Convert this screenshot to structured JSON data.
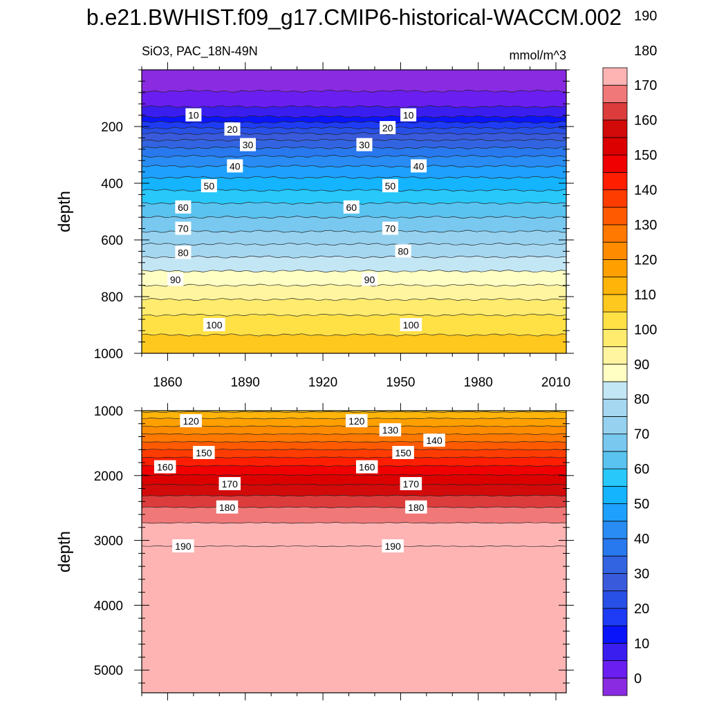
{
  "chart_data": {
    "title": "b.e21.BWHIST.f09_g17.CMIP6-historical-WACCM.002",
    "left_subtitle": "SiO3, PAC_18N-49N",
    "right_subtitle": "mmol/m^3",
    "type": "heatmap",
    "x_axis": {
      "ticks": [
        1860,
        1890,
        1920,
        1950,
        1980,
        2010
      ],
      "range": [
        1850,
        2014
      ]
    },
    "panels": [
      {
        "name": "upper",
        "ylabel": "depth",
        "ylim": [
          0,
          1000
        ],
        "yticks": [
          200,
          400,
          600,
          800,
          1000
        ],
        "contour_depths": [
          {
            "value": 0,
            "depth": 75
          },
          {
            "value": 5,
            "depth": 130
          },
          {
            "value": 10,
            "depth": 165
          },
          {
            "value": 15,
            "depth": 185
          },
          {
            "value": 20,
            "depth": 205
          },
          {
            "value": 25,
            "depth": 225
          },
          {
            "value": 30,
            "depth": 248
          },
          {
            "value": 35,
            "depth": 275
          },
          {
            "value": 40,
            "depth": 305
          },
          {
            "value": 45,
            "depth": 340
          },
          {
            "value": 50,
            "depth": 380
          },
          {
            "value": 55,
            "depth": 425
          },
          {
            "value": 60,
            "depth": 470
          },
          {
            "value": 65,
            "depth": 520
          },
          {
            "value": 70,
            "depth": 570
          },
          {
            "value": 75,
            "depth": 615
          },
          {
            "value": 80,
            "depth": 660
          },
          {
            "value": 85,
            "depth": 710
          },
          {
            "value": 90,
            "depth": 760
          },
          {
            "value": 95,
            "depth": 810
          },
          {
            "value": 100,
            "depth": 865
          },
          {
            "value": 105,
            "depth": 935
          }
        ],
        "labels": [
          {
            "text": "10",
            "year": 1870,
            "depth": 160
          },
          {
            "text": "10",
            "year": 1953,
            "depth": 160
          },
          {
            "text": "20",
            "year": 1885,
            "depth": 210
          },
          {
            "text": "20",
            "year": 1945,
            "depth": 205
          },
          {
            "text": "30",
            "year": 1891,
            "depth": 265
          },
          {
            "text": "30",
            "year": 1936,
            "depth": 265
          },
          {
            "text": "40",
            "year": 1886,
            "depth": 340
          },
          {
            "text": "40",
            "year": 1957,
            "depth": 340
          },
          {
            "text": "50",
            "year": 1876,
            "depth": 410
          },
          {
            "text": "50",
            "year": 1946,
            "depth": 410
          },
          {
            "text": "60",
            "year": 1866,
            "depth": 485
          },
          {
            "text": "60",
            "year": 1931,
            "depth": 485
          },
          {
            "text": "70",
            "year": 1866,
            "depth": 560
          },
          {
            "text": "70",
            "year": 1946,
            "depth": 560
          },
          {
            "text": "80",
            "year": 1866,
            "depth": 645
          },
          {
            "text": "80",
            "year": 1951,
            "depth": 640
          },
          {
            "text": "90",
            "year": 1863,
            "depth": 740
          },
          {
            "text": "90",
            "year": 1938,
            "depth": 740
          },
          {
            "text": "100",
            "year": 1878,
            "depth": 900
          },
          {
            "text": "100",
            "year": 1954,
            "depth": 900
          }
        ]
      },
      {
        "name": "lower",
        "ylabel": "depth",
        "ylim": [
          1000,
          5350
        ],
        "yticks": [
          1000,
          2000,
          3000,
          4000,
          5000
        ],
        "contour_depths": [
          {
            "value": 110,
            "depth": 1020
          },
          {
            "value": 115,
            "depth": 1120
          },
          {
            "value": 120,
            "depth": 1240
          },
          {
            "value": 125,
            "depth": 1360
          },
          {
            "value": 130,
            "depth": 1480
          },
          {
            "value": 135,
            "depth": 1600
          },
          {
            "value": 140,
            "depth": 1720
          },
          {
            "value": 145,
            "depth": 1850
          },
          {
            "value": 150,
            "depth": 1990
          },
          {
            "value": 155,
            "depth": 2140
          },
          {
            "value": 160,
            "depth": 2310
          },
          {
            "value": 165,
            "depth": 2490
          },
          {
            "value": 170,
            "depth": 2730
          },
          {
            "value": 175,
            "depth": 3090
          }
        ],
        "labels": [
          {
            "text": "120",
            "year": 1869,
            "depth": 1160
          },
          {
            "text": "120",
            "year": 1933,
            "depth": 1160
          },
          {
            "text": "130",
            "year": 1946,
            "depth": 1300
          },
          {
            "text": "140",
            "year": 1963,
            "depth": 1460
          },
          {
            "text": "150",
            "year": 1874,
            "depth": 1650
          },
          {
            "text": "150",
            "year": 1951,
            "depth": 1650
          },
          {
            "text": "160",
            "year": 1859,
            "depth": 1870
          },
          {
            "text": "160",
            "year": 1937,
            "depth": 1870
          },
          {
            "text": "170",
            "year": 1884,
            "depth": 2130
          },
          {
            "text": "170",
            "year": 1954,
            "depth": 2130
          },
          {
            "text": "180",
            "year": 1883,
            "depth": 2490
          },
          {
            "text": "180",
            "year": 1956,
            "depth": 2490
          },
          {
            "text": "190",
            "year": 1866,
            "depth": 3090
          },
          {
            "text": "190",
            "year": 1947,
            "depth": 3090
          }
        ]
      }
    ],
    "colorbar": {
      "labels": [
        "0",
        "10",
        "20",
        "30",
        "40",
        "50",
        "60",
        "70",
        "80",
        "90",
        "100",
        "110",
        "120",
        "130",
        "140",
        "150",
        "160",
        "170",
        "180",
        "190"
      ],
      "levels_min": -5,
      "levels_step": 5,
      "colors": [
        "#8a2be2",
        "#6a1eef",
        "#3a1ef0",
        "#0a14fb",
        "#1e3cf5",
        "#2850e6",
        "#3a5adc",
        "#3264e2",
        "#2878ee",
        "#288cf4",
        "#1ea0ff",
        "#14b4ff",
        "#28c8fa",
        "#5ac3f0",
        "#78c8f0",
        "#96d2f0",
        "#a5d7f0",
        "#c3e6f5",
        "#ffffc3",
        "#fff5a0",
        "#ffeb6e",
        "#ffe146",
        "#ffc81e",
        "#ffb40a",
        "#ffa000",
        "#ff8c00",
        "#ff7800",
        "#ff5a00",
        "#ff3c00",
        "#ff1e00",
        "#f00000",
        "#dc0000",
        "#d20a0a",
        "#dc3c3c",
        "#f07878",
        "#ffb4b4"
      ]
    }
  }
}
